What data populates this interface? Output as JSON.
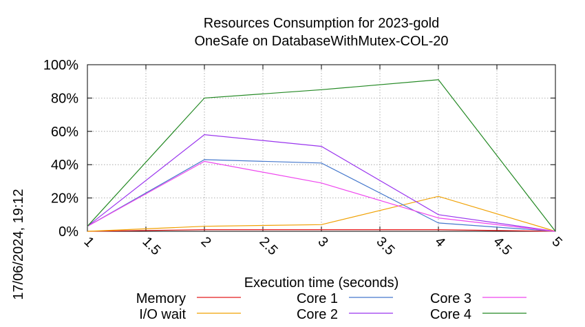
{
  "chart_data": {
    "type": "line",
    "title": "Resources Consumption for 2023-gold",
    "subtitle": "OneSafe on DatabaseWithMutex-COL-20",
    "xlabel": "Execution time (seconds)",
    "ylabel": "",
    "side_label": "17/06/2024, 19:12",
    "xlim": [
      1,
      5
    ],
    "ylim": [
      0,
      100
    ],
    "x_ticks": [
      "1",
      "1.5",
      "2",
      "2.5",
      "3",
      "3.5",
      "4",
      "4.5",
      "5"
    ],
    "y_ticks": [
      "0%",
      "20%",
      "40%",
      "60%",
      "80%",
      "100%"
    ],
    "grid": true,
    "legend_position": "bottom",
    "x": [
      1,
      2,
      3,
      4,
      5
    ],
    "series": [
      {
        "name": "Memory",
        "color": "#e41a1c",
        "values": [
          0,
          1,
          1,
          1,
          0
        ]
      },
      {
        "name": "I/O wait",
        "color": "#f0a000",
        "values": [
          0,
          3,
          4,
          21,
          0
        ]
      },
      {
        "name": "Core 1",
        "color": "#4477cc",
        "values": [
          3,
          43,
          41,
          5,
          0
        ]
      },
      {
        "name": "Core 2",
        "color": "#9933ee",
        "values": [
          3,
          58,
          51,
          10,
          0
        ]
      },
      {
        "name": "Core 3",
        "color": "#ee44ee",
        "values": [
          3,
          42,
          29,
          8,
          0
        ]
      },
      {
        "name": "Core 4",
        "color": "#228822",
        "values": [
          3,
          80,
          85,
          91,
          0
        ]
      }
    ]
  }
}
